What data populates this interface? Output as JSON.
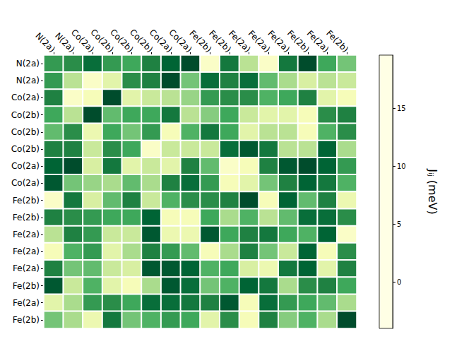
{
  "chart_data": {
    "type": "heatmap",
    "x_labels": [
      "N(2a)",
      "N(2a)",
      "Co(2a)",
      "Co(2b)",
      "Co(2b)",
      "Co(2b)",
      "Co(2a)",
      "Co(2a)",
      "Fe(2b)",
      "Fe(2b)",
      "Fe(2a)",
      "Fe(2a)",
      "Fe(2a)",
      "Fe(2b)",
      "Fe(2a)",
      "Fe(2b)"
    ],
    "y_labels": [
      "N(2a)",
      "N(2a)",
      "Co(2a)",
      "Co(2b)",
      "Co(2b)",
      "Co(2b)",
      "Co(2a)",
      "Co(2a)",
      "Fe(2b)",
      "Fe(2b)",
      "Fe(2a)",
      "Fe(2a)",
      "Fe(2a)",
      "Fe(2b)",
      "Fe(2a)",
      "Fe(2b)"
    ],
    "cells": [
      [
        12,
        13,
        16,
        12,
        11,
        14,
        17,
        19,
        -2,
        15,
        4,
        -2,
        15,
        19,
        11,
        8
      ],
      [
        12,
        4,
        -2,
        1,
        13,
        14,
        19,
        8,
        16,
        14,
        16,
        9,
        5,
        2,
        4,
        3
      ],
      [
        14,
        -2,
        -1,
        19,
        1,
        3,
        4,
        6,
        12,
        13,
        13,
        10,
        11,
        14,
        1,
        -1
      ],
      [
        11,
        4,
        19,
        9,
        11,
        11,
        15,
        4,
        7,
        11,
        3,
        1,
        1,
        -1,
        13,
        14
      ],
      [
        9,
        13,
        0,
        11,
        8,
        12,
        -1,
        10,
        15,
        11,
        1,
        4,
        4,
        -1,
        10,
        13
      ],
      [
        14,
        14,
        3,
        13,
        11,
        -2,
        3,
        3,
        3,
        16,
        18,
        15,
        4,
        4,
        17,
        5
      ],
      [
        17,
        19,
        2,
        15,
        1,
        3,
        1,
        14,
        9,
        -2,
        -1,
        14,
        18,
        19,
        17,
        12
      ],
      [
        18,
        8,
        6,
        5,
        9,
        5,
        14,
        16,
        12,
        -1,
        1,
        8,
        14,
        17,
        15,
        10
      ],
      [
        -2,
        15,
        2,
        9,
        14,
        3,
        10,
        13,
        13,
        14,
        19,
        -1,
        17,
        9,
        14,
        0
      ],
      [
        14,
        13,
        12,
        11,
        11,
        17,
        -1,
        -1,
        11,
        5,
        10,
        4,
        9,
        16,
        16,
        13
      ],
      [
        4,
        14,
        12,
        3,
        3,
        18,
        0,
        0,
        18,
        11,
        14,
        15,
        11,
        10,
        17,
        -2
      ],
      [
        -1,
        10,
        12,
        1,
        5,
        14,
        12,
        9,
        -1,
        5,
        14,
        8,
        3,
        17,
        -1,
        13
      ],
      [
        14,
        8,
        9,
        3,
        2,
        18,
        18,
        17,
        10,
        11,
        2,
        0,
        15,
        17,
        1,
        14
      ],
      [
        18,
        3,
        10,
        1,
        -1,
        5,
        18,
        16,
        8,
        10,
        17,
        15,
        5,
        13,
        14,
        11
      ],
      [
        1,
        5,
        12,
        13,
        11,
        16,
        16,
        15,
        14,
        18,
        -1,
        16,
        12,
        11,
        9,
        5
      ],
      [
        8,
        5,
        0,
        15,
        8,
        10,
        12,
        11,
        1,
        13,
        -1,
        14,
        7,
        10,
        5,
        19
      ]
    ],
    "colorbar": {
      "label": "Jᵢⱼ (meV)",
      "range": [
        -4,
        19.6
      ],
      "ticks": [
        0,
        5,
        10,
        15
      ]
    }
  }
}
